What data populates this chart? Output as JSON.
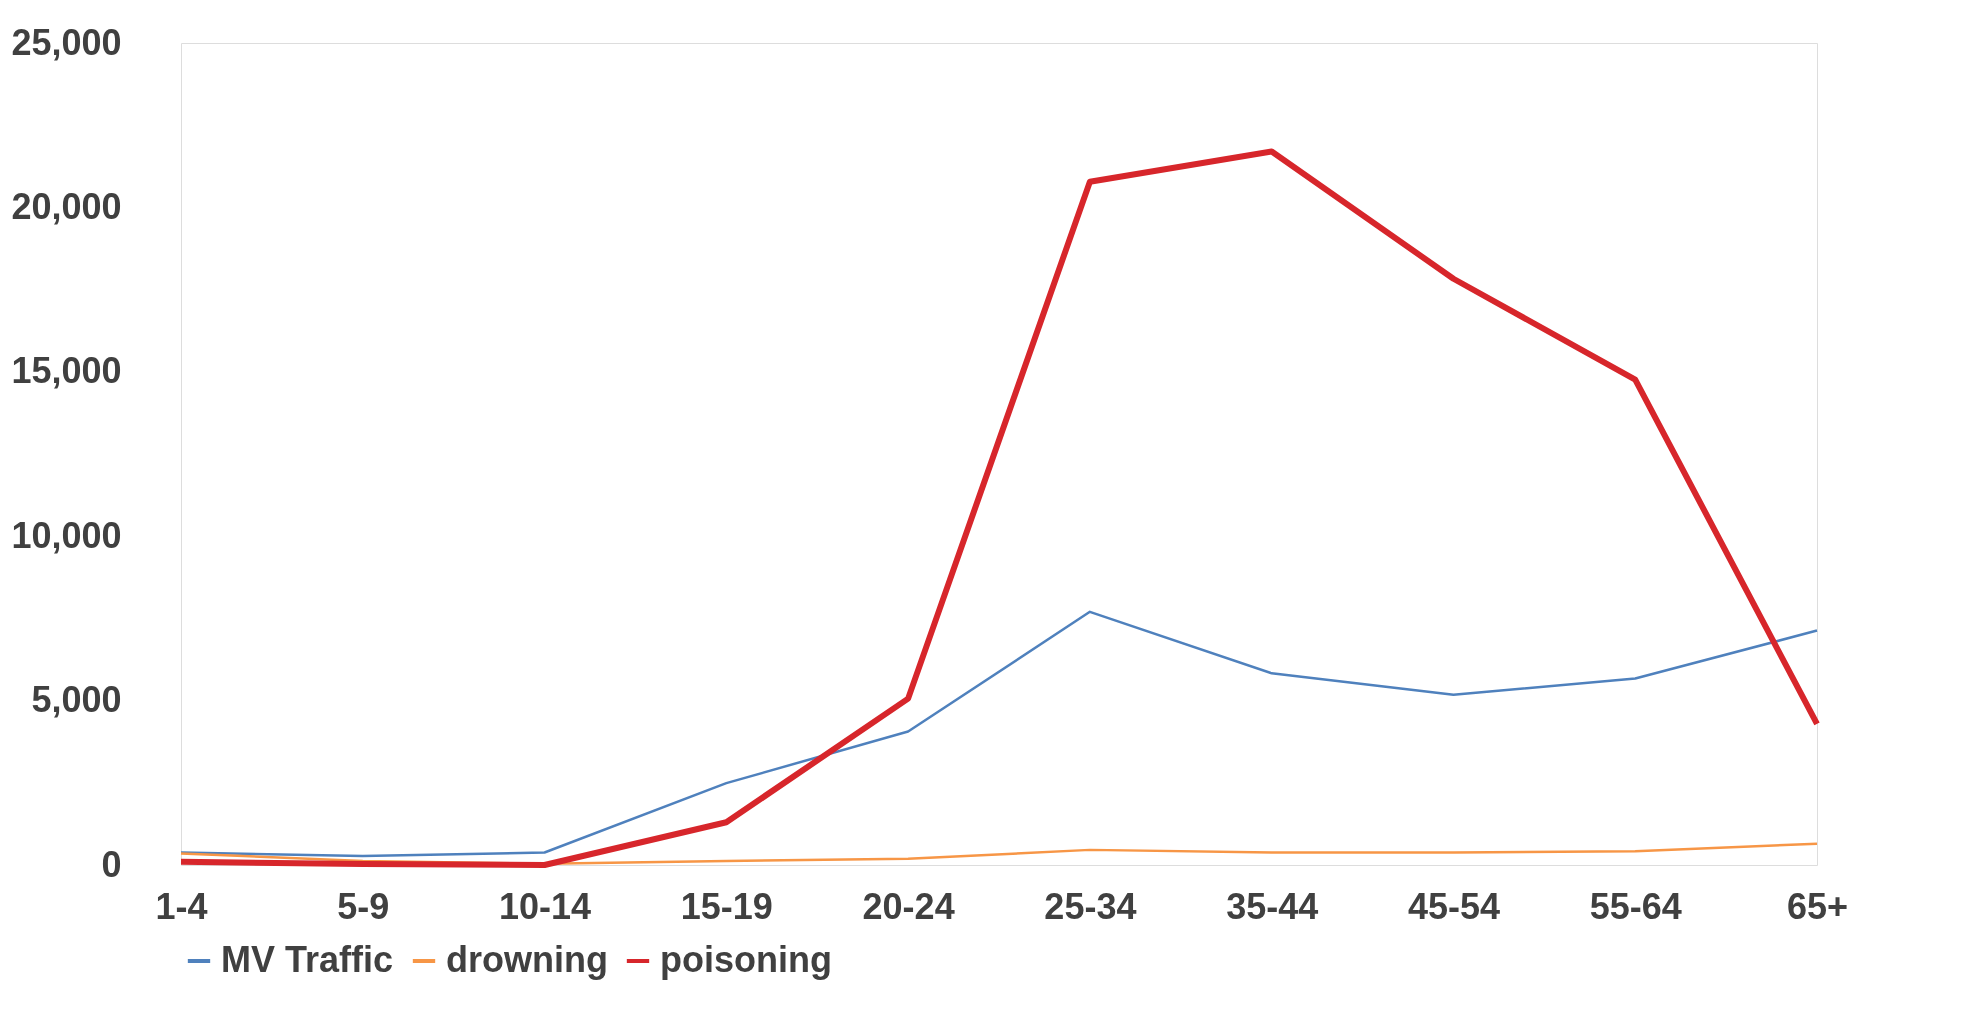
{
  "chart_data": {
    "type": "line",
    "categories": [
      "1-4",
      "5-9",
      "10-14",
      "15-19",
      "20-24",
      "25-34",
      "35-44",
      "45-54",
      "55-64",
      "65+"
    ],
    "series": [
      {
        "name": "MV Traffic",
        "color": "#4f81bd",
        "values": [
          380,
          270,
          380,
          2490,
          4060,
          7700,
          5830,
          5180,
          5670,
          7130
        ]
      },
      {
        "name": "drowning",
        "color": "#f79646",
        "values": [
          350,
          120,
          40,
          120,
          190,
          460,
          380,
          380,
          420,
          650
        ]
      },
      {
        "name": "poisoning",
        "color": "#d7262b",
        "values": [
          100,
          30,
          0,
          1300,
          5060,
          20780,
          21700,
          17830,
          14760,
          4290
        ]
      }
    ],
    "ylim": [
      0,
      25000
    ],
    "yticks": [
      0,
      {
        "value": 5000,
        "label": "5,000"
      },
      {
        "value": 10000,
        "label": "10,000"
      },
      {
        "value": 15000,
        "label": "15,000"
      },
      {
        "value": 20000,
        "label": "20,000"
      },
      {
        "value": 25000,
        "label": "25,000"
      }
    ],
    "grid": false,
    "legend": "bottom",
    "marker": "none",
    "line_style": "solid"
  }
}
